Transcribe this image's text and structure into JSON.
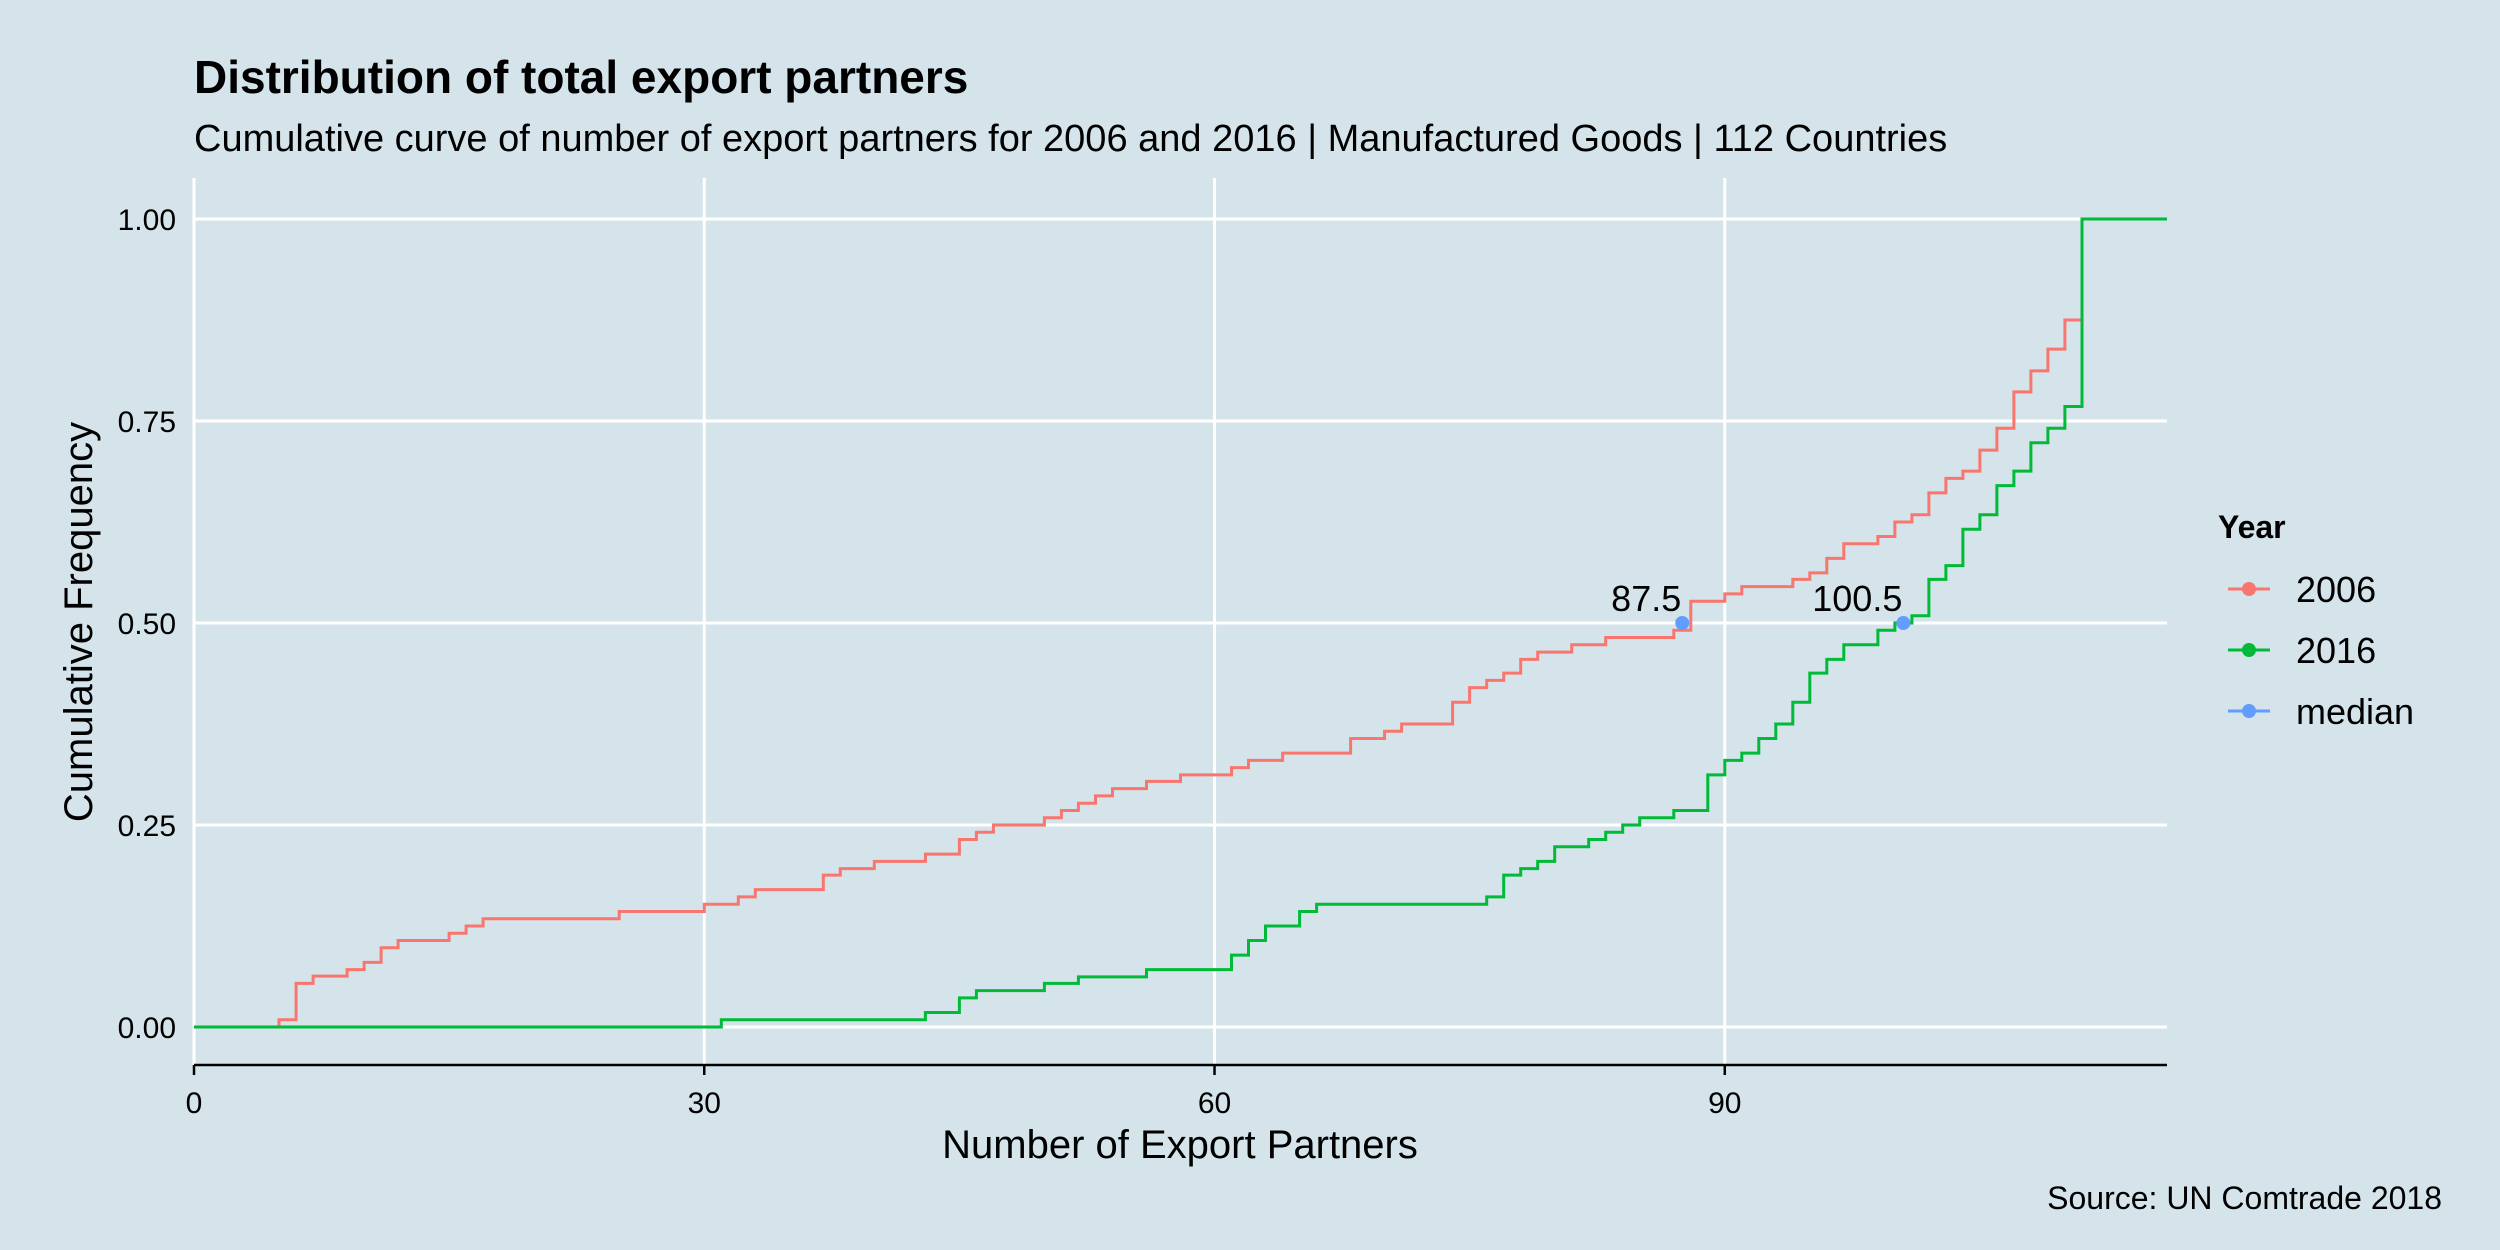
{
  "chart_data": {
    "type": "line",
    "step": true,
    "title": "Distribution of total export partners",
    "subtitle": "Cumulative curve of number of export partners for 2006 and 2016 | Manufactured Goods | 112 Countries",
    "caption": "Source: UN Comtrade 2018",
    "xlabel": "Number of Export Partners",
    "ylabel": "Cumulative Frequency",
    "xlim": [
      0,
      116
    ],
    "ylim": [
      0,
      1
    ],
    "x_ticks": [
      0,
      30,
      60,
      90
    ],
    "x_tick_labels": [
      "0",
      "30",
      "60",
      "90"
    ],
    "y_ticks": [
      0,
      0.25,
      0.5,
      0.75,
      1
    ],
    "y_tick_labels": [
      "0.00",
      "0.25",
      "0.50",
      "0.75",
      "1.00"
    ],
    "grid": true,
    "legend": {
      "title": "Year",
      "position": "right",
      "entries": [
        "2006",
        "2016",
        "median"
      ]
    },
    "series": [
      {
        "name": "2006",
        "color": "#f8766d",
        "points": [
          [
            0,
            0
          ],
          [
            5,
            0.009
          ],
          [
            6,
            0.054
          ],
          [
            7,
            0.063
          ],
          [
            9,
            0.071
          ],
          [
            10,
            0.08
          ],
          [
            11,
            0.098
          ],
          [
            12,
            0.107
          ],
          [
            15,
            0.116
          ],
          [
            16,
            0.125
          ],
          [
            17,
            0.134
          ],
          [
            25,
            0.143
          ],
          [
            30,
            0.152
          ],
          [
            32,
            0.161
          ],
          [
            33,
            0.17
          ],
          [
            37,
            0.188
          ],
          [
            38,
            0.196
          ],
          [
            40,
            0.205
          ],
          [
            43,
            0.214
          ],
          [
            45,
            0.232
          ],
          [
            46,
            0.241
          ],
          [
            47,
            0.25
          ],
          [
            50,
            0.259
          ],
          [
            51,
            0.268
          ],
          [
            52,
            0.277
          ],
          [
            53,
            0.286
          ],
          [
            54,
            0.295
          ],
          [
            56,
            0.304
          ],
          [
            58,
            0.312
          ],
          [
            61,
            0.321
          ],
          [
            62,
            0.33
          ],
          [
            64,
            0.339
          ],
          [
            68,
            0.357
          ],
          [
            70,
            0.366
          ],
          [
            71,
            0.375
          ],
          [
            74,
            0.402
          ],
          [
            75,
            0.42
          ],
          [
            76,
            0.429
          ],
          [
            77,
            0.438
          ],
          [
            78,
            0.455
          ],
          [
            79,
            0.464
          ],
          [
            81,
            0.473
          ],
          [
            83,
            0.482
          ],
          [
            87,
            0.491
          ],
          [
            88,
            0.527
          ],
          [
            90,
            0.536
          ],
          [
            91,
            0.545
          ],
          [
            94,
            0.554
          ],
          [
            95,
            0.562
          ],
          [
            96,
            0.58
          ],
          [
            97,
            0.598
          ],
          [
            99,
            0.607
          ],
          [
            100,
            0.625
          ],
          [
            101,
            0.634
          ],
          [
            102,
            0.661
          ],
          [
            103,
            0.679
          ],
          [
            104,
            0.688
          ],
          [
            105,
            0.714
          ],
          [
            106,
            0.741
          ],
          [
            107,
            0.786
          ],
          [
            108,
            0.812
          ],
          [
            109,
            0.839
          ],
          [
            110,
            0.875
          ],
          [
            111,
            0.875
          ]
        ]
      },
      {
        "name": "2016",
        "color": "#00ba38",
        "points": [
          [
            0,
            0
          ],
          [
            31,
            0.009
          ],
          [
            43,
            0.018
          ],
          [
            45,
            0.036
          ],
          [
            46,
            0.045
          ],
          [
            50,
            0.054
          ],
          [
            52,
            0.062
          ],
          [
            56,
            0.071
          ],
          [
            61,
            0.089
          ],
          [
            62,
            0.107
          ],
          [
            63,
            0.125
          ],
          [
            65,
            0.143
          ],
          [
            66,
            0.152
          ],
          [
            76,
            0.161
          ],
          [
            77,
            0.188
          ],
          [
            78,
            0.196
          ],
          [
            79,
            0.205
          ],
          [
            80,
            0.223
          ],
          [
            82,
            0.232
          ],
          [
            83,
            0.241
          ],
          [
            84,
            0.25
          ],
          [
            85,
            0.259
          ],
          [
            87,
            0.268
          ],
          [
            89,
            0.312
          ],
          [
            90,
            0.33
          ],
          [
            91,
            0.339
          ],
          [
            92,
            0.357
          ],
          [
            93,
            0.375
          ],
          [
            94,
            0.402
          ],
          [
            95,
            0.438
          ],
          [
            96,
            0.455
          ],
          [
            97,
            0.473
          ],
          [
            99,
            0.491
          ],
          [
            100,
            0.5
          ],
          [
            101,
            0.509
          ],
          [
            102,
            0.554
          ],
          [
            103,
            0.571
          ],
          [
            104,
            0.616
          ],
          [
            105,
            0.634
          ],
          [
            106,
            0.67
          ],
          [
            107,
            0.688
          ],
          [
            108,
            0.723
          ],
          [
            109,
            0.741
          ],
          [
            110,
            0.768
          ],
          [
            111,
            1
          ],
          [
            116,
            1
          ]
        ]
      }
    ],
    "median": {
      "name": "median",
      "color": "#619cff",
      "points": [
        {
          "x": 87.5,
          "y": 0.5,
          "label": "87.5"
        },
        {
          "x": 100.5,
          "y": 0.5,
          "label": "100.5"
        }
      ]
    }
  }
}
